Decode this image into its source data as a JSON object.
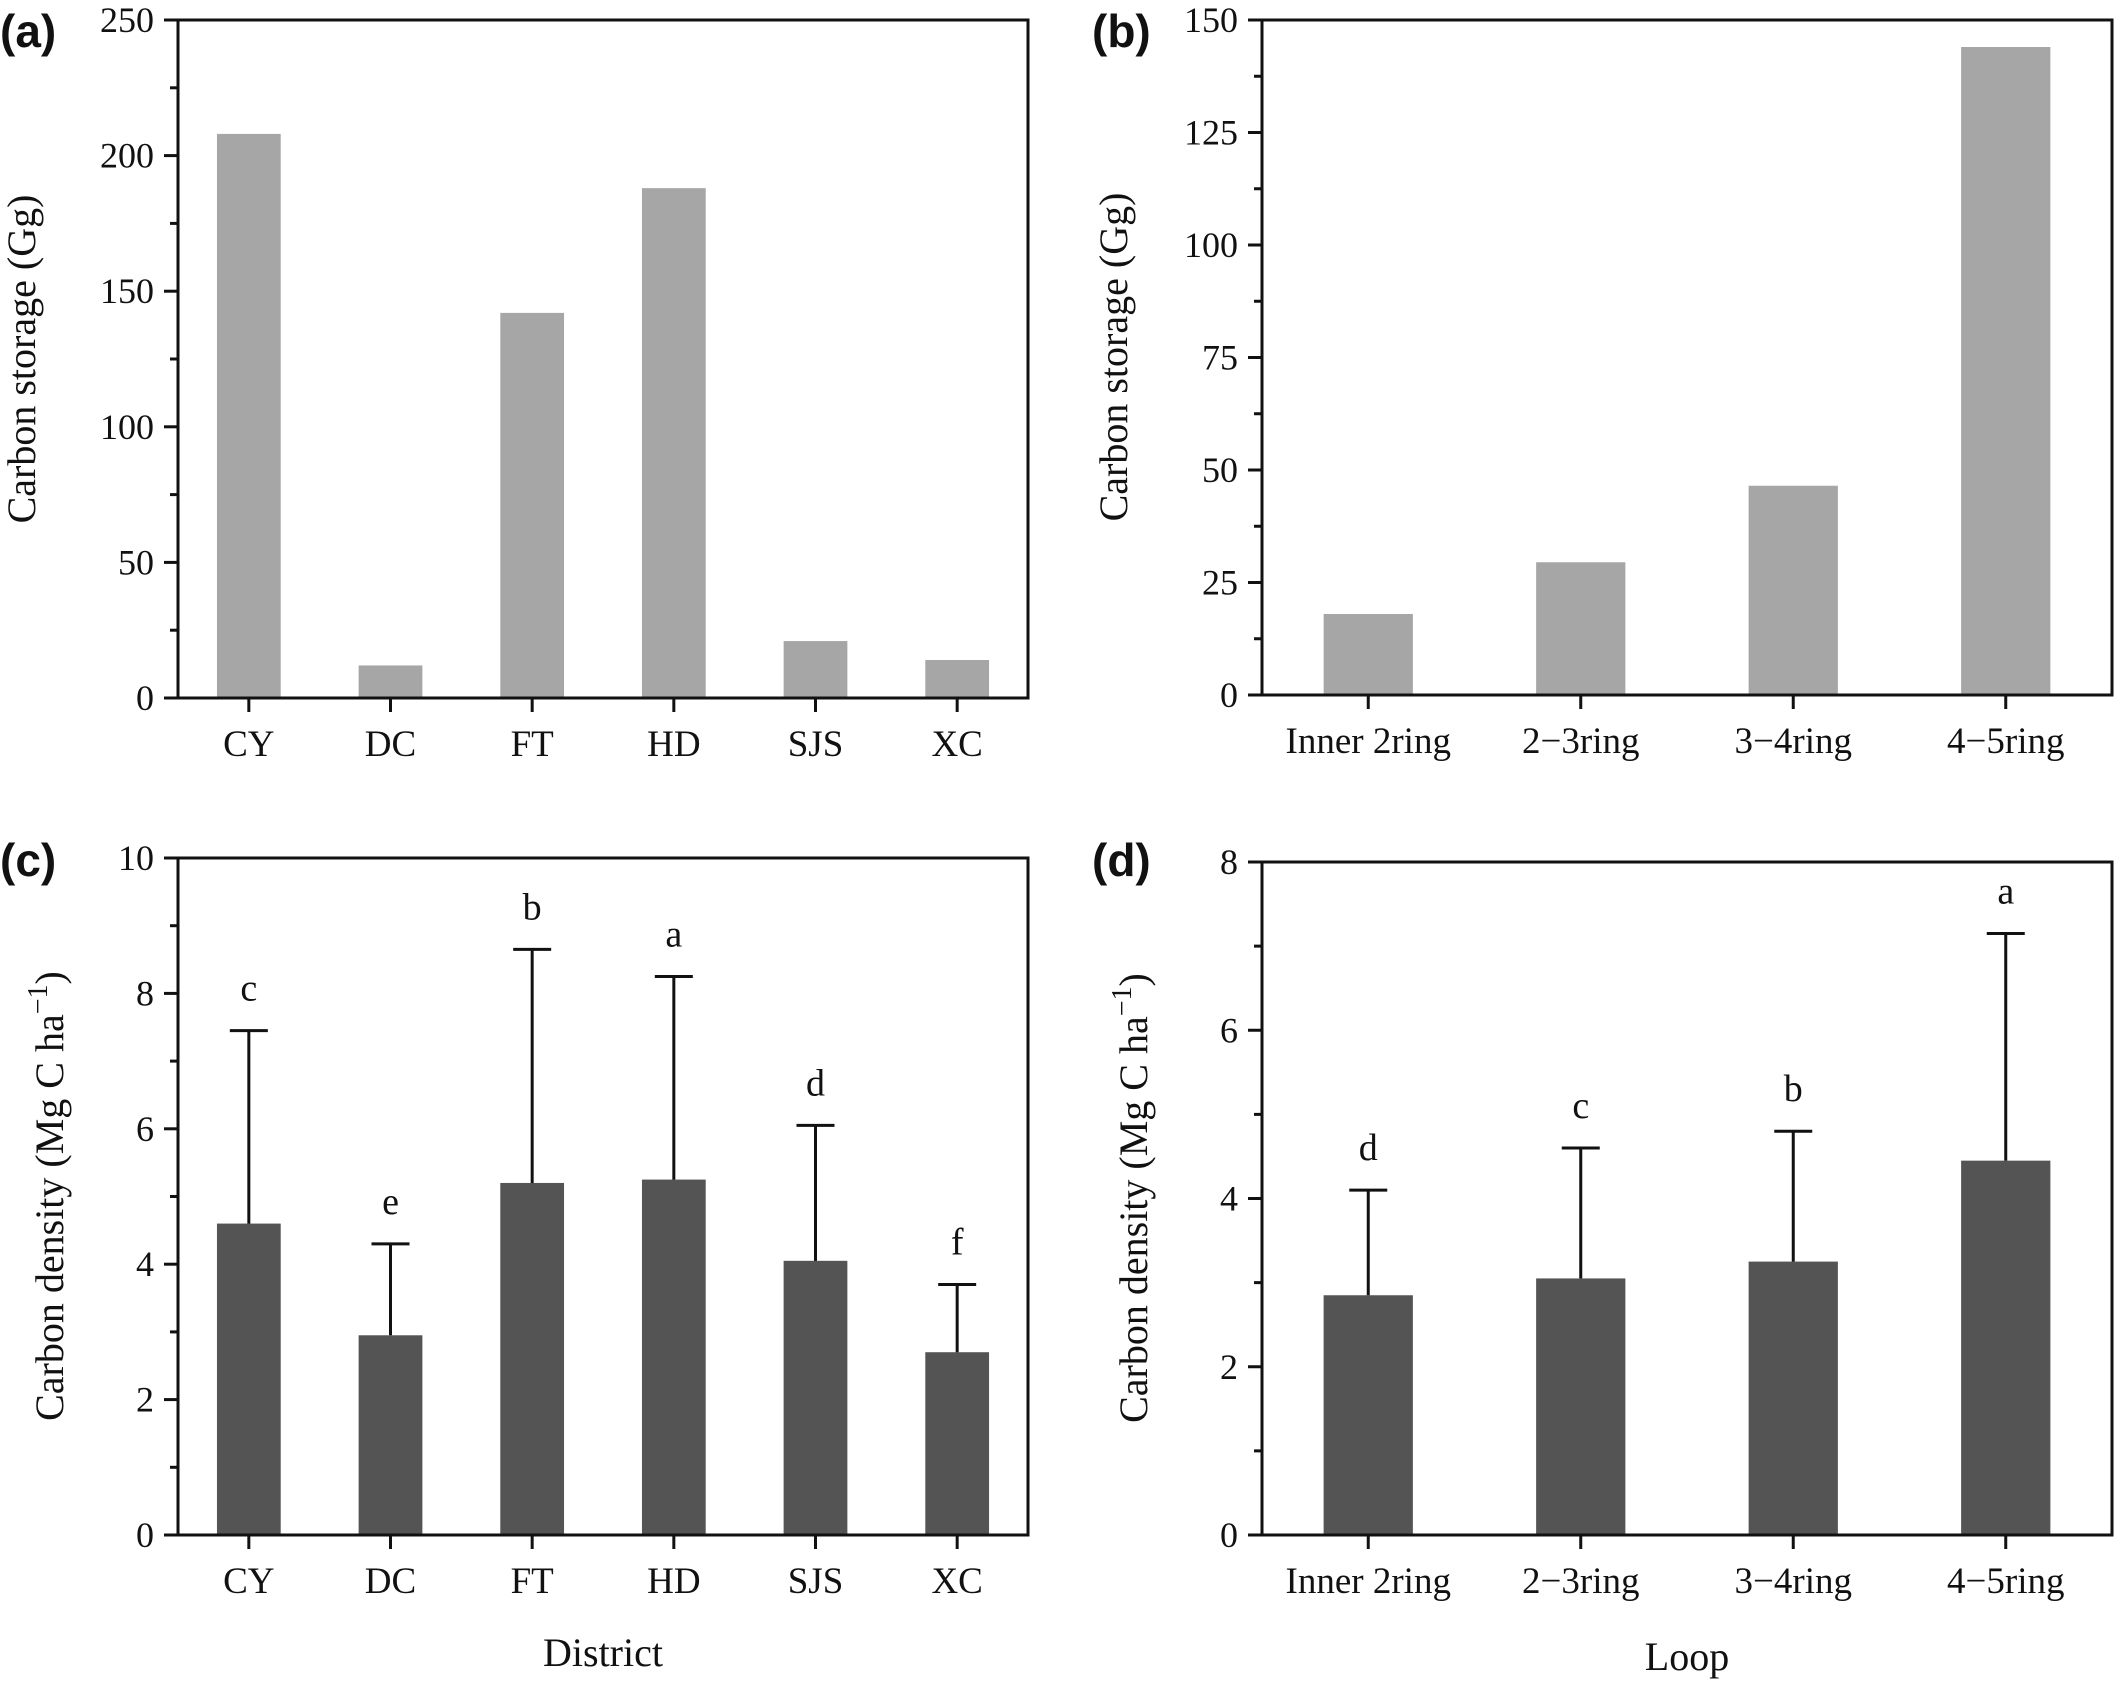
{
  "colors": {
    "storage_bar": "#a6a6a6",
    "density_bar": "#545454",
    "axis": "#111111"
  },
  "chart_data": [
    {
      "id": "a",
      "panel_label": "(a)",
      "type": "bar",
      "categories": [
        "CY",
        "DC",
        "FT",
        "HD",
        "SJS",
        "XC"
      ],
      "values": [
        208,
        12,
        142,
        188,
        21,
        14
      ],
      "ylabel": "Carbon storage (Gg)",
      "xlabel": "",
      "ylim": [
        0,
        250
      ],
      "yticks": [
        0,
        50,
        100,
        150,
        200,
        250
      ],
      "grid": false
    },
    {
      "id": "b",
      "panel_label": "(b)",
      "type": "bar",
      "categories": [
        "Inner 2ring",
        "2−3ring",
        "3−4ring",
        "4−5ring"
      ],
      "values": [
        18,
        29.5,
        46.5,
        144
      ],
      "ylabel": "Carbon storage (Gg)",
      "xlabel": "",
      "ylim": [
        0,
        150
      ],
      "yticks": [
        0,
        25,
        50,
        75,
        100,
        125,
        150
      ],
      "grid": false
    },
    {
      "id": "c",
      "panel_label": "(c)",
      "type": "bar",
      "categories": [
        "CY",
        "DC",
        "FT",
        "HD",
        "SJS",
        "XC"
      ],
      "values": [
        4.6,
        2.95,
        5.2,
        5.25,
        4.05,
        2.7
      ],
      "error_upper": [
        7.45,
        4.3,
        8.65,
        8.25,
        6.05,
        3.7
      ],
      "letters": [
        "c",
        "e",
        "b",
        "a",
        "d",
        "f"
      ],
      "ylabel_main": "Carbon density (Mg C ha",
      "ylabel_sup": "−1",
      "ylabel_end": ")",
      "xlabel": "District",
      "ylim": [
        0,
        10
      ],
      "yticks": [
        0,
        2,
        4,
        6,
        8,
        10
      ],
      "grid": false
    },
    {
      "id": "d",
      "panel_label": "(d)",
      "type": "bar",
      "categories": [
        "Inner 2ring",
        "2−3ring",
        "3−4ring",
        "4−5ring"
      ],
      "values": [
        2.85,
        3.05,
        3.25,
        4.45
      ],
      "error_upper": [
        4.1,
        4.6,
        4.8,
        7.15
      ],
      "letters": [
        "d",
        "c",
        "b",
        "a"
      ],
      "ylabel_main": "Carbon density (Mg C ha",
      "ylabel_sup": "−1",
      "ylabel_end": ")",
      "xlabel": "Loop",
      "ylim": [
        0,
        8
      ],
      "yticks": [
        0,
        2,
        4,
        6,
        8
      ],
      "grid": false
    }
  ]
}
